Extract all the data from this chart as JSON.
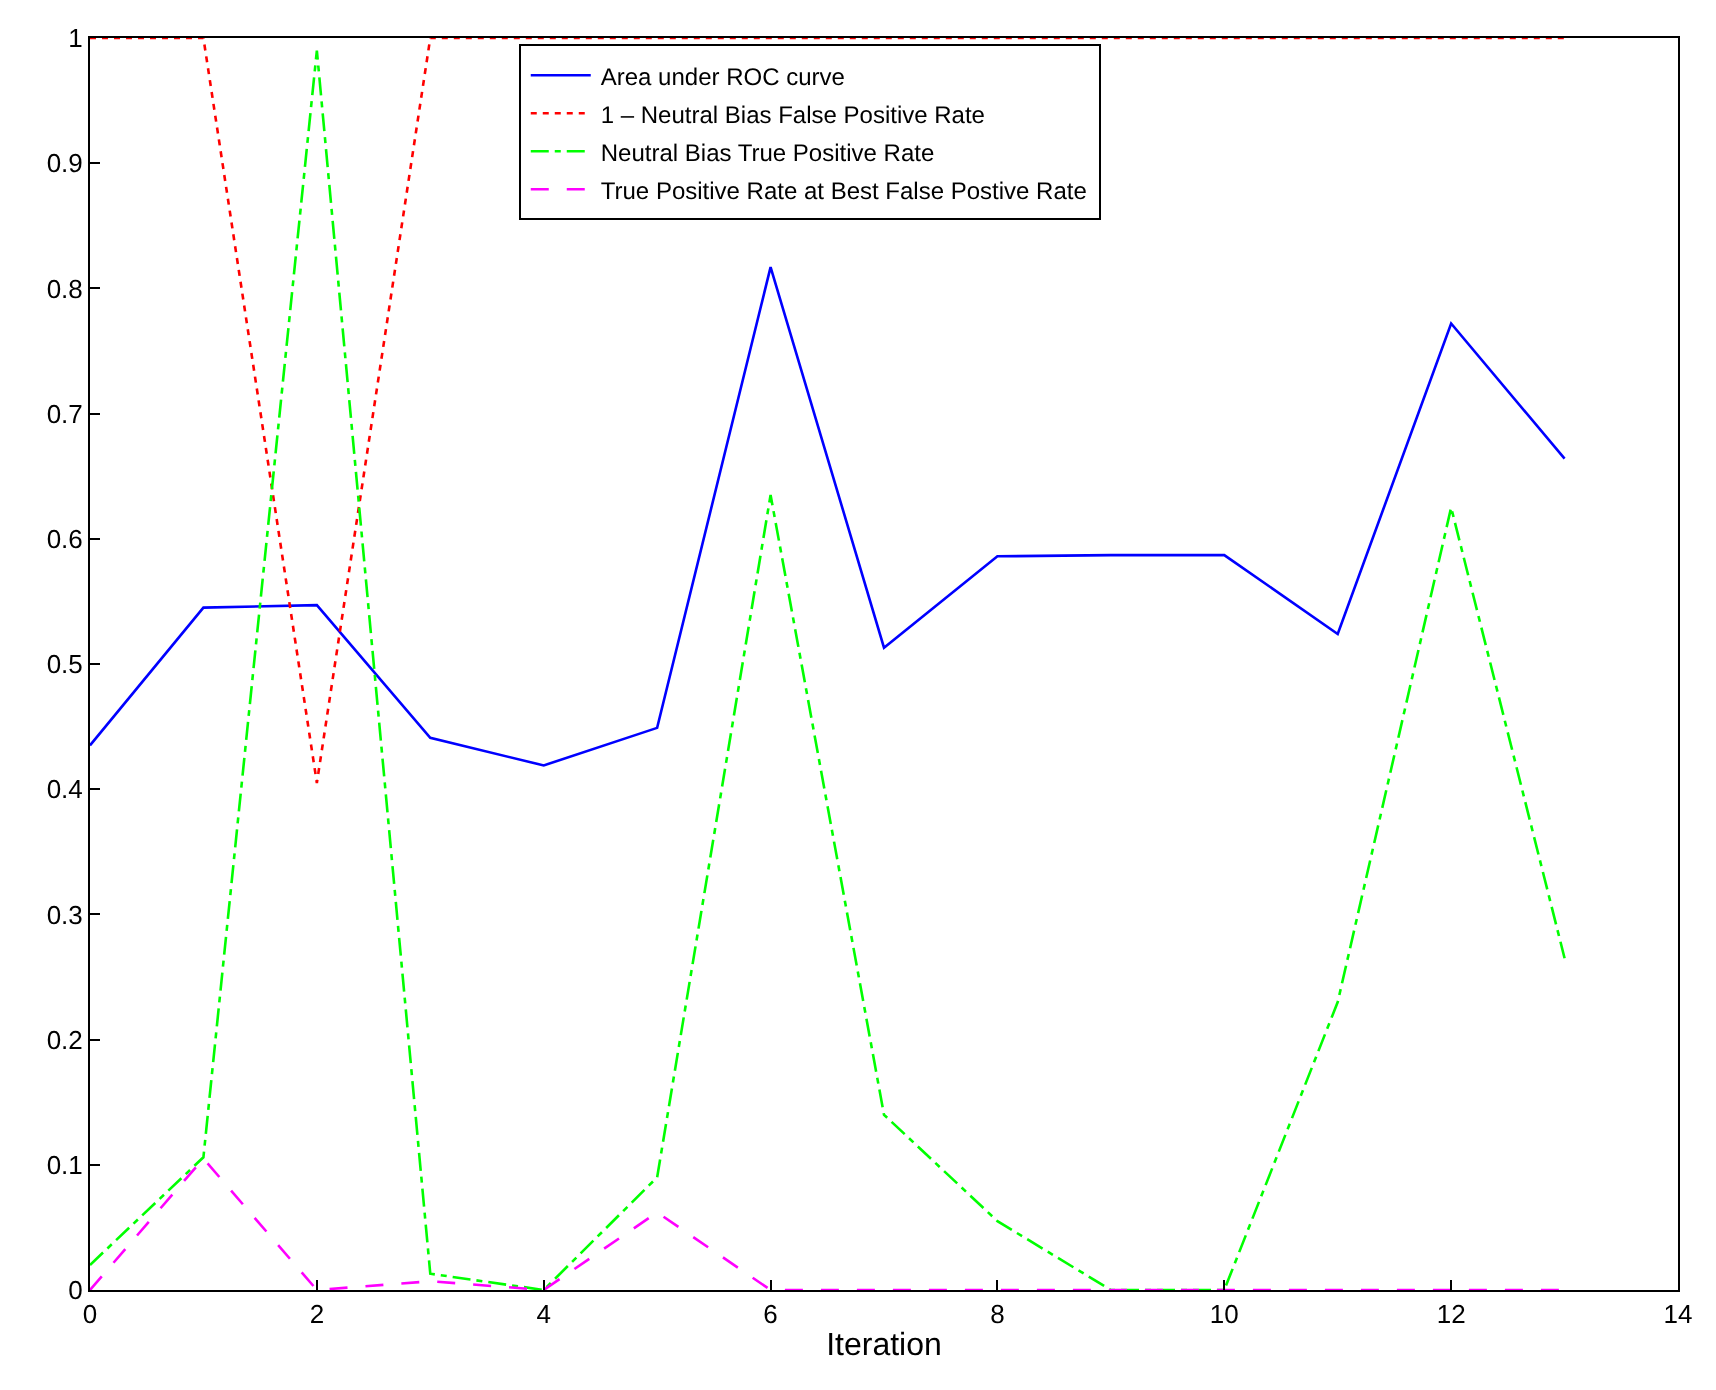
{
  "chart_data": {
    "type": "line",
    "xlabel": "Iteration",
    "x": [
      0,
      1,
      2,
      3,
      4,
      5,
      6,
      7,
      8,
      9,
      10,
      11,
      12,
      13
    ],
    "series": [
      {
        "name": "Area under ROC curve",
        "color": "#0000ff",
        "line_style": "solid",
        "values": [
          0.435,
          0.545,
          0.547,
          0.441,
          0.419,
          0.449,
          0.817,
          0.513,
          0.586,
          0.587,
          0.587,
          0.524,
          0.772,
          0.664
        ]
      },
      {
        "name": "1 – Neutral Bias False Positive Rate",
        "color": "#ff0000",
        "line_style": "dotted",
        "values": [
          1,
          1,
          0.405,
          1,
          1,
          1,
          1,
          1,
          1,
          1,
          1,
          1,
          1,
          1
        ]
      },
      {
        "name": "Neutral Bias True Positive Rate",
        "color": "#00ff00",
        "line_style": "dashdot",
        "values": [
          0.02,
          0.106,
          0.99,
          0.013,
          0,
          0.09,
          0.635,
          0.14,
          0.055,
          0,
          0,
          0.23,
          0.625,
          0.265
        ]
      },
      {
        "name": "True Positive Rate at Best False Postive Rate",
        "color": "#ff00ff",
        "line_style": "dashed",
        "values": [
          0,
          0.105,
          0,
          0.007,
          0,
          0.062,
          0,
          0,
          0,
          0,
          0,
          0,
          0,
          0
        ]
      }
    ],
    "xlim": [
      0,
      14
    ],
    "xticks": [
      0,
      2,
      4,
      6,
      8,
      10,
      12,
      14
    ],
    "ylim": [
      0,
      1
    ],
    "yticks": [
      0,
      0.1,
      0.2,
      0.3,
      0.4,
      0.5,
      0.6,
      0.7,
      0.8,
      0.9,
      1
    ],
    "legend": "top",
    "marker": "none"
  }
}
